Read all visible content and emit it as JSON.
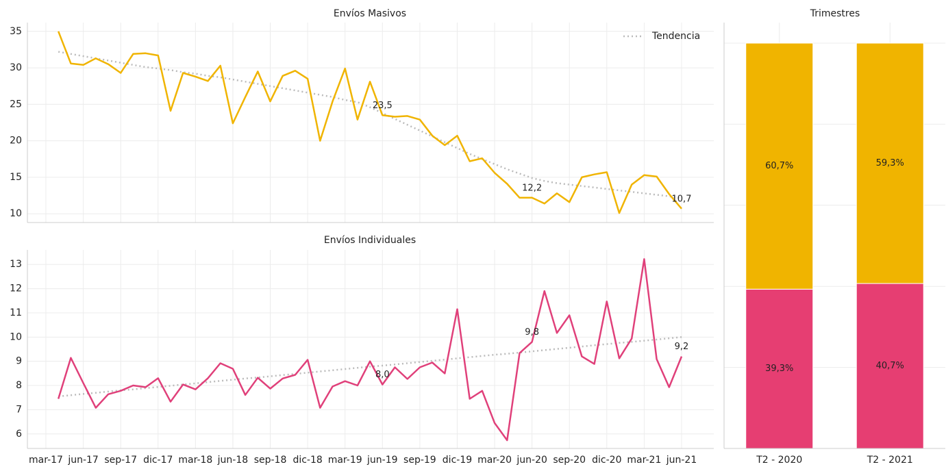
{
  "chart_data": [
    {
      "type": "line",
      "title": "Envíos Masivos",
      "ylim": [
        8.8,
        36.2
      ],
      "yticks": [
        10,
        15,
        20,
        25,
        30,
        35
      ],
      "grid": true,
      "legend": "upper right",
      "series": [
        {
          "color": "#f0b400",
          "values": [
            null,
            35.0,
            30.6,
            30.4,
            31.3,
            30.5,
            29.3,
            31.9,
            32.0,
            31.7,
            24.1,
            29.3,
            28.8,
            28.2,
            30.3,
            22.4,
            26.0,
            29.5,
            25.4,
            28.9,
            29.6,
            28.5,
            20.0,
            25.4,
            29.9,
            22.9,
            28.1,
            23.5,
            23.3,
            23.4,
            22.9,
            20.7,
            19.4,
            20.7,
            17.2,
            17.6,
            15.6,
            14.1,
            12.2,
            12.2,
            11.4,
            12.8,
            11.6,
            15.0,
            15.4,
            15.7,
            10.1,
            14.0,
            15.3,
            15.1,
            12.7,
            10.7
          ],
          "value_labels": [
            null,
            null,
            null,
            null,
            null,
            null,
            null,
            null,
            null,
            null,
            null,
            null,
            null,
            null,
            null,
            null,
            null,
            null,
            null,
            null,
            null,
            null,
            null,
            null,
            null,
            null,
            null,
            "23,5",
            null,
            null,
            null,
            null,
            null,
            null,
            null,
            null,
            null,
            null,
            null,
            "12,2",
            null,
            null,
            null,
            null,
            null,
            null,
            null,
            null,
            null,
            null,
            null,
            "10,7"
          ]
        },
        {
          "name": "Tendencia",
          "color": "#bbbbbb",
          "values": [
            null,
            32.2,
            31.9,
            31.6,
            31.3,
            31.0,
            30.7,
            30.4,
            30.1,
            29.9,
            29.7,
            29.4,
            29.2,
            28.9,
            28.7,
            28.4,
            28.1,
            27.8,
            27.5,
            27.2,
            26.9,
            26.6,
            26.3,
            26.0,
            25.6,
            25.3,
            24.6,
            23.8,
            23.0,
            22.2,
            21.4,
            20.6,
            19.8,
            19.0,
            18.2,
            17.5,
            16.8,
            16.1,
            15.5,
            14.9,
            14.5,
            14.2,
            14.0,
            13.8,
            13.6,
            13.4,
            13.2,
            13.0,
            12.8,
            12.6,
            12.4,
            12.1
          ]
        }
      ]
    },
    {
      "type": "line",
      "title": "Envíos Individuales",
      "ylim": [
        5.4,
        13.6
      ],
      "yticks": [
        6,
        7,
        8,
        9,
        10,
        11,
        12,
        13
      ],
      "grid": true,
      "categories": [
        "mar-17",
        null,
        null,
        "jun-17",
        null,
        null,
        "sep-17",
        null,
        null,
        "dic-17",
        null,
        null,
        "mar-18",
        null,
        null,
        "jun-18",
        null,
        null,
        "sep-18",
        null,
        null,
        "dic-18",
        null,
        null,
        "mar-19",
        null,
        null,
        "jun-19",
        null,
        null,
        "sep-19",
        null,
        null,
        "dic-19",
        null,
        null,
        "mar-20",
        null,
        null,
        "jun-20",
        null,
        null,
        "sep-20",
        null,
        null,
        "dic-20",
        null,
        null,
        "mar-21",
        null,
        null,
        "jun-21"
      ],
      "series": [
        {
          "color": "#e0407a",
          "values": [
            null,
            7.45,
            9.14,
            8.1,
            7.08,
            7.64,
            7.78,
            8.0,
            7.93,
            8.3,
            7.33,
            8.04,
            7.84,
            8.3,
            8.92,
            8.69,
            7.61,
            8.32,
            7.87,
            8.29,
            8.44,
            9.06,
            7.08,
            7.96,
            8.18,
            8.0,
            9.0,
            8.04,
            8.75,
            8.27,
            8.75,
            8.95,
            8.5,
            11.15,
            7.45,
            7.78,
            6.45,
            5.74,
            9.34,
            9.8,
            11.9,
            10.17,
            10.9,
            9.2,
            8.89,
            11.47,
            9.12,
            9.94,
            13.22,
            9.09,
            7.93,
            9.2
          ],
          "value_labels": [
            null,
            null,
            null,
            null,
            null,
            null,
            null,
            null,
            null,
            null,
            null,
            null,
            null,
            null,
            null,
            null,
            null,
            null,
            null,
            null,
            null,
            null,
            null,
            null,
            null,
            null,
            null,
            "8,0",
            null,
            null,
            null,
            null,
            null,
            null,
            null,
            null,
            null,
            null,
            null,
            "9,8",
            null,
            null,
            null,
            null,
            null,
            null,
            null,
            null,
            null,
            null,
            null,
            "9,2"
          ]
        },
        {
          "color": "#bbbbbb",
          "values": [
            null,
            7.55,
            7.6,
            7.65,
            7.7,
            7.75,
            7.8,
            7.84,
            7.89,
            7.94,
            7.99,
            8.04,
            8.09,
            8.14,
            8.19,
            8.24,
            8.29,
            8.33,
            8.38,
            8.43,
            8.48,
            8.53,
            8.58,
            8.63,
            8.68,
            8.73,
            8.78,
            8.82,
            8.87,
            8.92,
            8.97,
            9.02,
            9.07,
            9.12,
            9.17,
            9.22,
            9.27,
            9.31,
            9.36,
            9.41,
            9.46,
            9.51,
            9.56,
            9.61,
            9.66,
            9.71,
            9.76,
            9.8,
            9.85,
            9.9,
            9.95,
            10.0
          ]
        }
      ]
    },
    {
      "type": "stacked_bar",
      "title": "Trimestres",
      "categories": [
        "T2 - 2020",
        "T2 - 2021"
      ],
      "ylim": [
        0,
        100
      ],
      "grid_lines": [
        0,
        20,
        40,
        60,
        80,
        100
      ],
      "series": [
        {
          "color": "#e63e72",
          "values": [
            39.3,
            40.7
          ],
          "value_labels": [
            "39,3%",
            "40,7%"
          ]
        },
        {
          "color": "#f0b400",
          "values": [
            60.7,
            59.3
          ],
          "value_labels": [
            "60,7%",
            "59,3%"
          ]
        }
      ]
    }
  ]
}
